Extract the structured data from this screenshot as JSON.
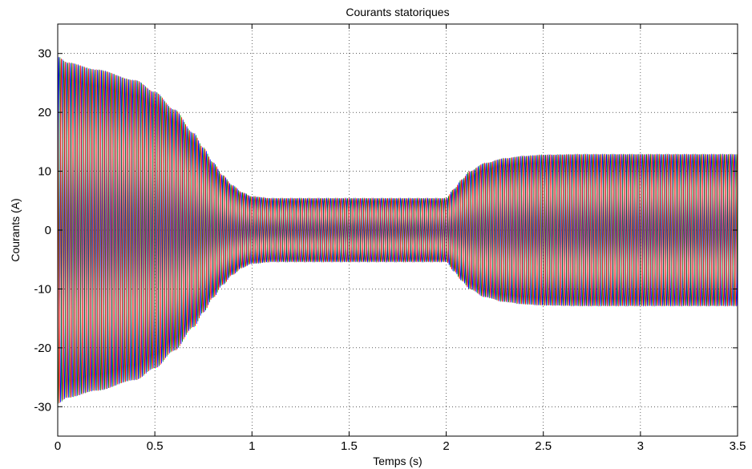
{
  "chart_data": {
    "type": "line",
    "title": "Courants statoriques",
    "xlabel": "Temps (s)",
    "ylabel": "Courants (A)",
    "xlim": [
      0,
      3.5
    ],
    "ylim": [
      -35,
      35
    ],
    "xticks": [
      0,
      0.5,
      1,
      1.5,
      2,
      2.5,
      3,
      3.5
    ],
    "xtick_labels": [
      "0",
      "0.5",
      "1",
      "1.5",
      "2",
      "2.5",
      "3",
      "3.5"
    ],
    "yticks": [
      -30,
      -20,
      -10,
      0,
      10,
      20,
      30
    ],
    "ytick_labels": [
      "-30",
      "-20",
      "-10",
      "0",
      "10",
      "20",
      "30"
    ],
    "grid": true,
    "frequency_hz": 50,
    "series": [
      {
        "color": "#0000ff",
        "phase_deg": 0
      },
      {
        "color": "#008000",
        "phase_deg": -120
      },
      {
        "color": "#ff0000",
        "phase_deg": 120
      }
    ],
    "envelope": {
      "t": [
        0,
        0.05,
        0.2,
        0.4,
        0.5,
        0.6,
        0.7,
        0.75,
        0.8,
        0.85,
        0.9,
        0.95,
        1.0,
        1.1,
        1.5,
        2.0,
        2.04,
        2.08,
        2.12,
        2.2,
        2.3,
        2.4,
        2.5,
        2.7,
        3.0,
        3.5
      ],
      "amplitude": [
        29.5,
        28.5,
        27.3,
        25.5,
        23.5,
        20.5,
        16.5,
        14,
        11.5,
        9.3,
        7.6,
        6.4,
        5.7,
        5.4,
        5.4,
        5.4,
        7.0,
        8.6,
        10.0,
        11.4,
        12.2,
        12.6,
        12.8,
        12.9,
        12.9,
        12.9
      ]
    }
  }
}
